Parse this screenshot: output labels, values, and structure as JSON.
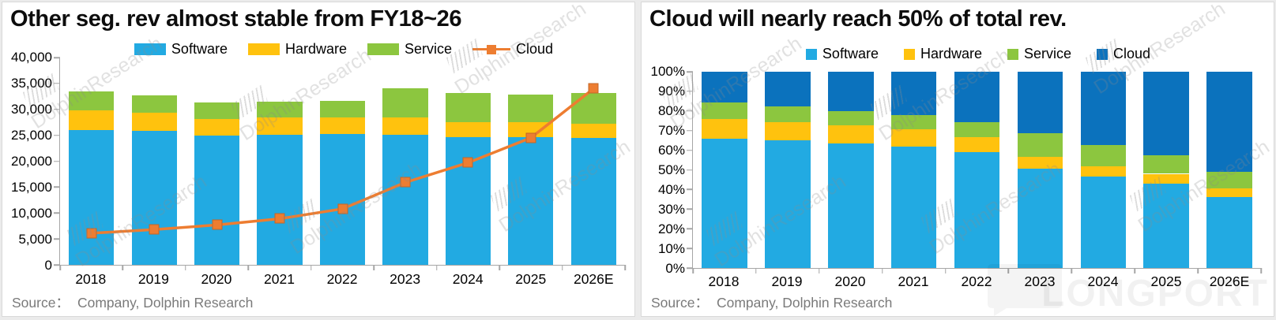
{
  "watermark": {
    "text": "DolphinResearch",
    "brand": "LONGPORT"
  },
  "chart_data": [
    {
      "type": "bar",
      "variant": "stacked",
      "title": "Other seg. rev almost stable from FY18~26",
      "categories": [
        "2018",
        "2019",
        "2020",
        "2021",
        "2022",
        "2023",
        "2024",
        "2025",
        "2026E"
      ],
      "series": [
        {
          "name": "Software",
          "color": "#22AAE2",
          "values": [
            26000,
            25800,
            24900,
            25100,
            25200,
            25100,
            24700,
            24700,
            24500
          ]
        },
        {
          "name": "Hardware",
          "color": "#FFC20E",
          "values": [
            3800,
            3600,
            3300,
            3400,
            3300,
            3400,
            2800,
            2800,
            2800
          ]
        },
        {
          "name": "Service",
          "color": "#8CC63F",
          "values": [
            3600,
            3300,
            3200,
            3000,
            3200,
            5600,
            5700,
            5400,
            5800
          ]
        }
      ],
      "line_series": {
        "name": "Cloud",
        "color": "#ED7D31",
        "values": [
          6100,
          6800,
          7700,
          8900,
          10800,
          15900,
          19700,
          24500,
          34000
        ]
      },
      "ylim": [
        0,
        40000
      ],
      "y_tick_labels": [
        "40,000",
        "35,000",
        "30,000",
        "25,000",
        "20,000",
        "15,000",
        "10,000",
        "5,000",
        "0"
      ],
      "xlabel": "",
      "ylabel": "",
      "gridlines": false,
      "legend_position": "top",
      "legend_marker": "rect",
      "source_label": "Source：",
      "source_value": "Company, Dolphin Research"
    },
    {
      "type": "bar",
      "variant": "stacked-100pct",
      "title": "Cloud will nearly reach 50% of total rev.",
      "categories": [
        "2018",
        "2019",
        "2020",
        "2021",
        "2022",
        "2023",
        "2024",
        "2025",
        "2026E"
      ],
      "series": [
        {
          "name": "Software",
          "color": "#22AAE2",
          "values": [
            66,
            65,
            63.5,
            62,
            59,
            50.5,
            46.5,
            43,
            36
          ]
        },
        {
          "name": "Hardware",
          "color": "#FFC20E",
          "values": [
            10,
            9.5,
            9,
            8.5,
            7.5,
            6,
            5.5,
            5,
            4.5
          ]
        },
        {
          "name": "Service",
          "color": "#8CC63F",
          "values": [
            8.5,
            8,
            7.5,
            7.5,
            8,
            12,
            10.5,
            9.5,
            8.5
          ]
        },
        {
          "name": "Cloud",
          "color": "#0B72BD",
          "values": [
            15.5,
            17.5,
            20,
            22,
            25.5,
            31.5,
            37.5,
            42.5,
            51
          ]
        }
      ],
      "ylim": [
        0,
        100
      ],
      "y_tick_labels": [
        "100%",
        "90%",
        "80%",
        "70%",
        "60%",
        "50%",
        "40%",
        "30%",
        "20%",
        "10%",
        "0%"
      ],
      "xlabel": "",
      "ylabel": "",
      "gridlines": false,
      "legend_position": "top",
      "legend_marker": "square",
      "source_label": "Source：",
      "source_value": "Company, Dolphin Research"
    }
  ]
}
